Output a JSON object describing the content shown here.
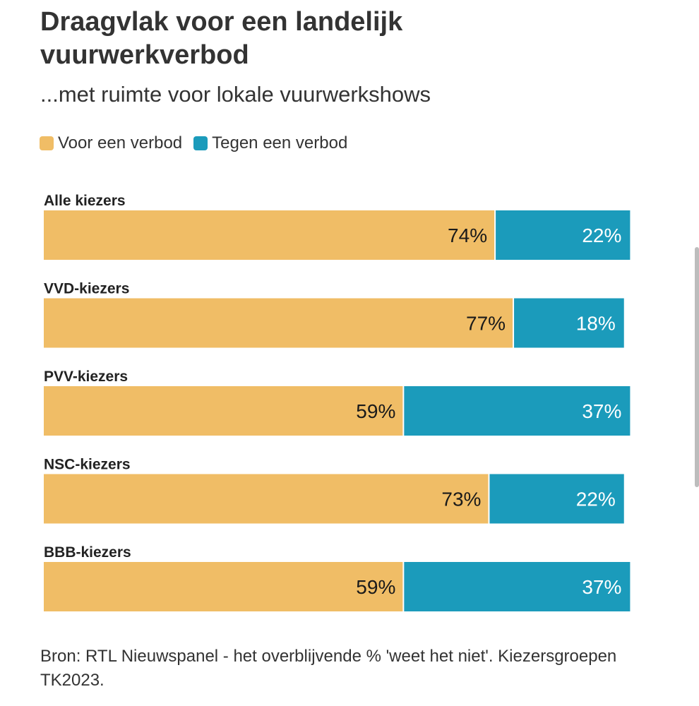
{
  "chart_data": {
    "type": "bar",
    "orientation": "horizontal",
    "stacked": true,
    "title": "Draagvlak voor een landelijk vuurwerkverbod",
    "subtitle": "...met ruimte voor lokale vuurwerkshows",
    "categories": [
      "Alle kiezers",
      "VVD-kiezers",
      "PVV-kiezers",
      "NSC-kiezers",
      "BBB-kiezers"
    ],
    "series": [
      {
        "name": "Voor een verbod",
        "values": [
          74,
          77,
          59,
          73,
          59
        ],
        "color": "#f0bd66"
      },
      {
        "name": "Tegen een verbod",
        "values": [
          22,
          18,
          37,
          22,
          37
        ],
        "color": "#1b9bbb"
      }
    ],
    "value_suffix": "%",
    "xlim": [
      0,
      100
    ],
    "xlabel": "",
    "ylabel": "",
    "legend": "top-left",
    "grid": false,
    "source": "Bron: RTL Nieuwspanel - het overblijvende % 'weet het niet'. Kiezersgroepen TK2023."
  }
}
